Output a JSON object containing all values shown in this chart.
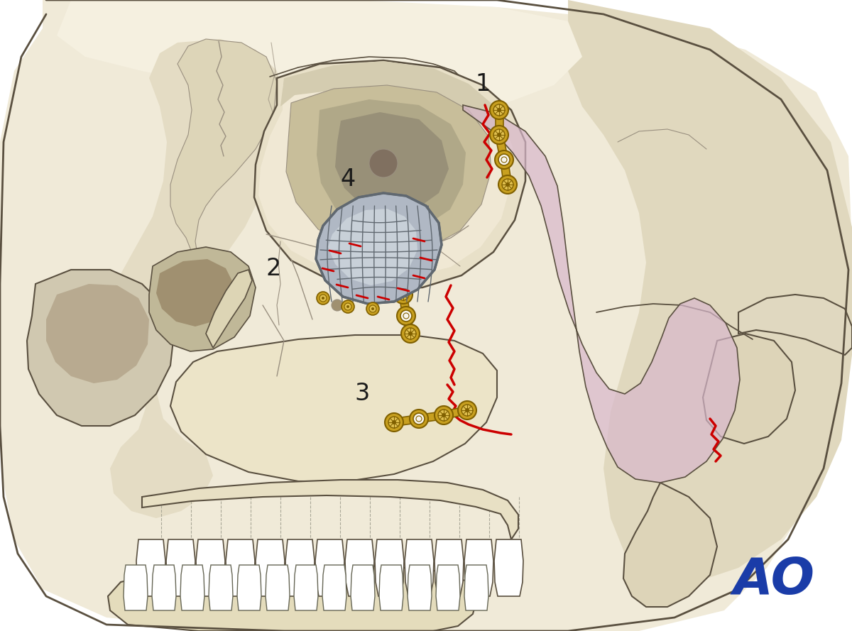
{
  "background_color": "#ffffff",
  "skull_light": "#f0ead8",
  "skull_mid": "#e4dcc4",
  "skull_shadow": "#d0c8b0",
  "skull_dark": "#b8aa90",
  "bone_line": "#5a5040",
  "bone_line_light": "#9a9080",
  "fracture_color": "#cc0000",
  "zygoma_fill": "#d8b8cc",
  "zygoma_alpha": 0.7,
  "plate_gold": "#c8a020",
  "plate_gold_light": "#e0c050",
  "plate_gold_dark": "#806000",
  "mesh_base": "#9098a8",
  "mesh_light": "#b8c0cc",
  "mesh_dark": "#606870",
  "ao_color": "#1a3ca8",
  "label_fontsize": 24,
  "ao_fontsize": 52,
  "fig_width": 12.0,
  "fig_height": 8.89,
  "white": "#ffffff",
  "near_white": "#f8f5ee"
}
